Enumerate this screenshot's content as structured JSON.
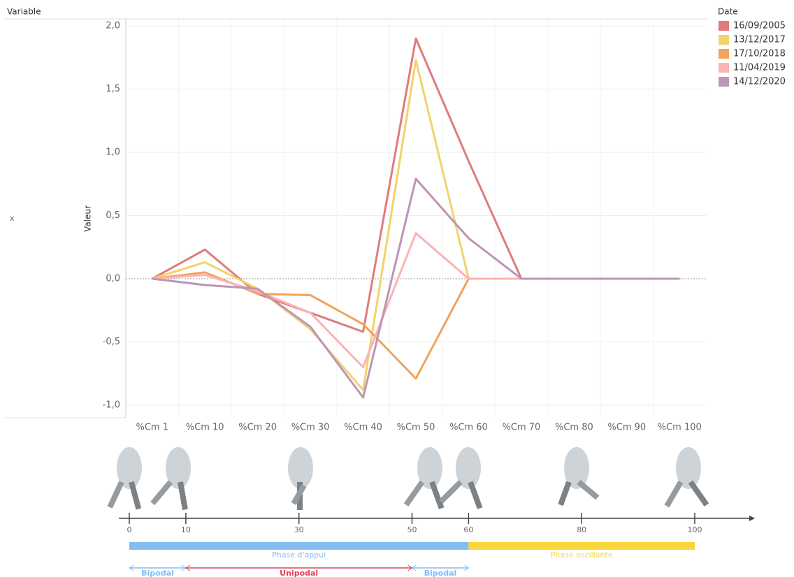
{
  "chart_data": {
    "type": "line",
    "row_header": "Variable",
    "row_label": "x",
    "y_label": "Valeur",
    "legend_title": "Date",
    "categories": [
      "%Cm 1",
      "%Cm 10",
      "%Cm 20",
      "%Cm 30",
      "%Cm 40",
      "%Cm 50",
      "%Cm 60",
      "%Cm 70",
      "%Cm 80",
      "%Cm 90",
      "%Cm 100"
    ],
    "series": [
      {
        "name": "16/09/2005",
        "color": "#e07b7b",
        "values": [
          0,
          0.23,
          -0.12,
          -0.27,
          -0.42,
          1.9,
          0.93,
          0,
          0,
          0,
          0
        ]
      },
      {
        "name": "13/12/2017",
        "color": "#f0d36e",
        "values": [
          0,
          0.13,
          -0.08,
          -0.4,
          -0.88,
          1.73,
          0,
          0,
          0,
          0,
          0
        ]
      },
      {
        "name": "17/10/2018",
        "color": "#f2a35c",
        "values": [
          0,
          0.05,
          -0.12,
          -0.13,
          -0.36,
          -0.79,
          0,
          0,
          0,
          0,
          0
        ]
      },
      {
        "name": "11/04/2019",
        "color": "#fbb3b6",
        "values": [
          0,
          0.03,
          -0.1,
          -0.27,
          -0.7,
          0.36,
          0,
          0,
          0,
          0,
          0
        ]
      },
      {
        "name": "14/12/2020",
        "color": "#bd95b5",
        "values": [
          0,
          -0.05,
          -0.08,
          -0.38,
          -0.94,
          0.79,
          0.32,
          0,
          0,
          0,
          0
        ]
      }
    ],
    "ylim": [
      -1.1,
      2.05
    ],
    "yticks": [
      {
        "value": -1,
        "label": "-1,0"
      },
      {
        "value": -0.5,
        "label": "-0,5"
      },
      {
        "value": 0,
        "label": "0,0"
      },
      {
        "value": 0.5,
        "label": "0,5"
      },
      {
        "value": 1,
        "label": "1,0"
      },
      {
        "value": 1.5,
        "label": "1,5"
      },
      {
        "value": 2,
        "label": "2,0"
      }
    ],
    "grid": true
  },
  "gait": {
    "ticks": [
      0,
      10,
      30,
      50,
      60,
      80,
      100
    ],
    "phases": [
      {
        "label": "Phase d'appui",
        "start": 0,
        "end": 60,
        "color": "#86bdf0"
      },
      {
        "label": "Phase oscillante",
        "start": 60,
        "end": 100,
        "color": "#fad63c"
      }
    ],
    "supports": [
      {
        "label": "Bipodal",
        "start": 0,
        "end": 10,
        "color": "#86bdf0"
      },
      {
        "label": "Unipodal",
        "start": 10,
        "end": 50,
        "color": "#e0405a"
      },
      {
        "label": "Bipodal",
        "start": 50,
        "end": 60,
        "color": "#86bdf0"
      }
    ]
  }
}
